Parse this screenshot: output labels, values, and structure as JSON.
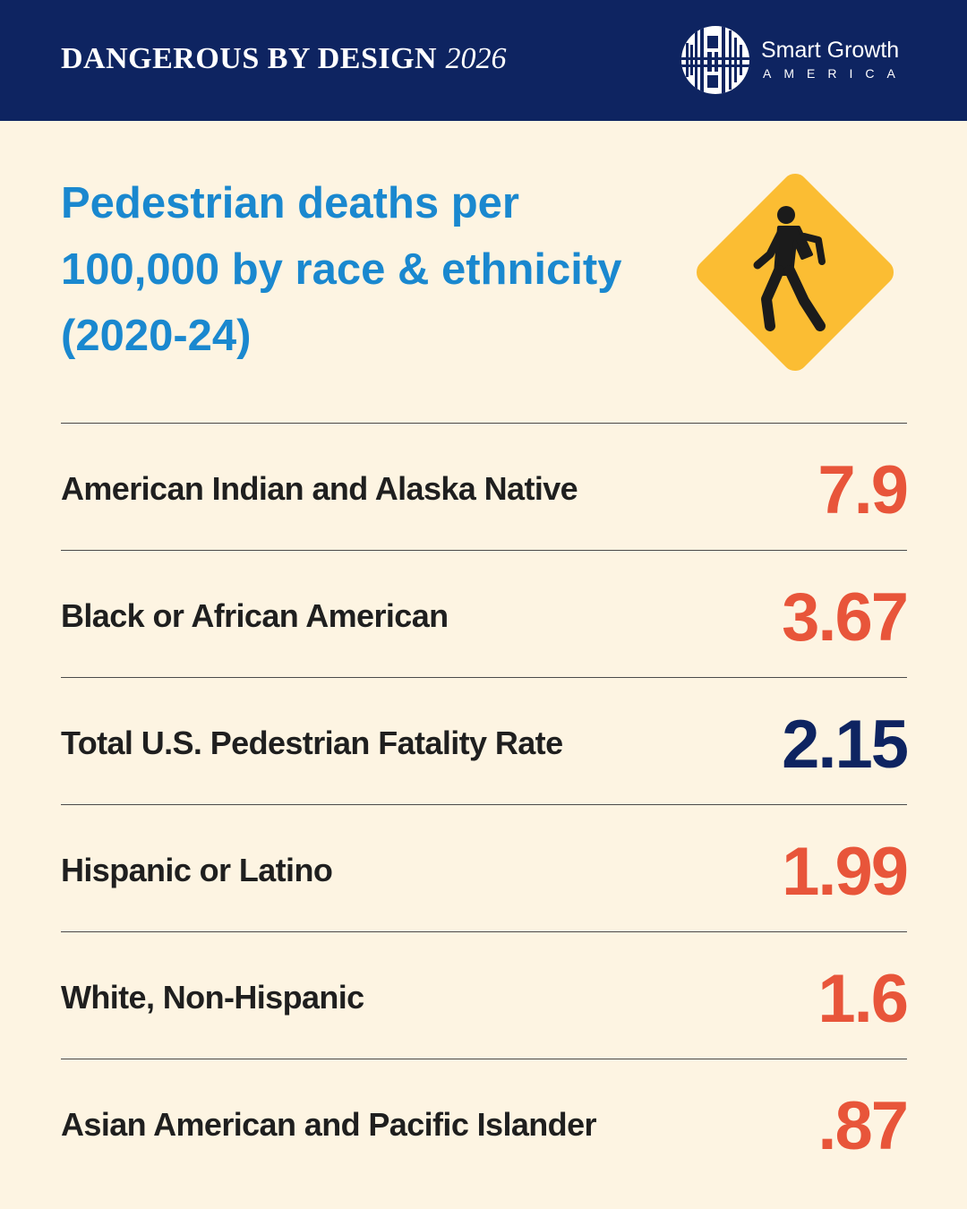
{
  "header": {
    "title_bold": "DANGEROUS BY DESIGN",
    "title_year": "2026",
    "logo_name": "Smart Growth",
    "logo_sub": "AMERICA",
    "logo_icon": "grid-logo-icon",
    "background_color": "#0e2461"
  },
  "sign_icon": "pedestrian-crossing-sign-icon",
  "colors": {
    "title": "#1a88cf",
    "value_highlight": "#e8553a",
    "value_total": "#0e2461",
    "sign": "#fbbd33"
  },
  "chart_data": {
    "type": "table",
    "title": "Pedestrian deaths per 100,000 by race & ethnicity (2020-24)",
    "rows": [
      {
        "label": "American Indian and Alaska Native",
        "value": 7.9,
        "display": "7.9",
        "highlight": false
      },
      {
        "label": "Black or African American",
        "value": 3.67,
        "display": "3.67",
        "highlight": false
      },
      {
        "label": "Total U.S. Pedestrian Fatality Rate",
        "value": 2.15,
        "display": "2.15",
        "highlight": true
      },
      {
        "label": "Hispanic or Latino",
        "value": 1.99,
        "display": "1.99",
        "highlight": false
      },
      {
        "label": "White, Non-Hispanic",
        "value": 1.6,
        "display": "1.6",
        "highlight": false
      },
      {
        "label": "Asian American and Pacific Islander",
        "value": 0.87,
        "display": ".87",
        "highlight": false
      }
    ]
  }
}
